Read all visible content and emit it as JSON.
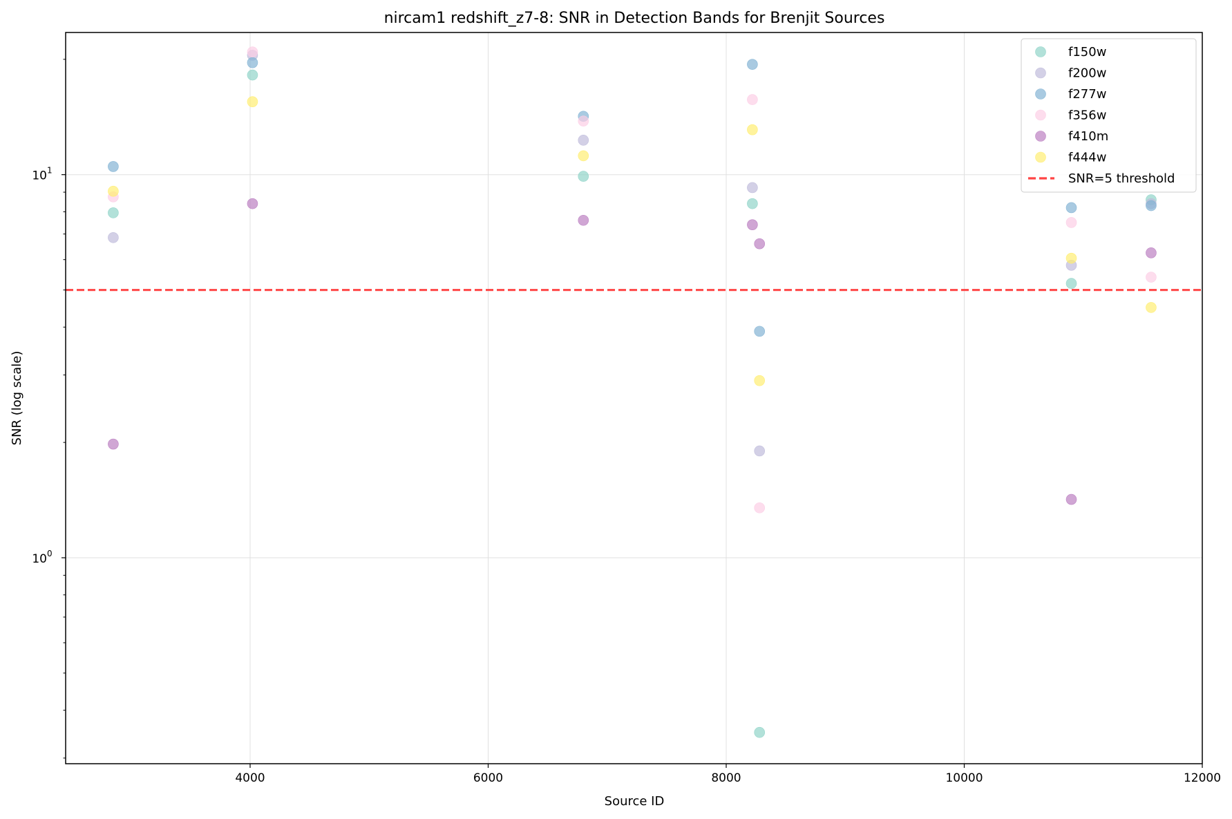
{
  "chart_data": {
    "type": "scatter",
    "title": "nircam1 redshift_z7-8: SNR in Detection Bands for Brenjit Sources",
    "xlabel": "Source ID",
    "ylabel": "SNR (log scale)",
    "xscale": "linear",
    "yscale": "log",
    "xlim": [
      2450,
      12000
    ],
    "ylim": [
      0.29,
      23.5
    ],
    "xticks": [
      {
        "value": 4000,
        "label": "4000"
      },
      {
        "value": 6000,
        "label": "6000"
      },
      {
        "value": 8000,
        "label": "8000"
      },
      {
        "value": 10000,
        "label": "10000"
      },
      {
        "value": 12000,
        "label": "12000"
      }
    ],
    "yticks": [
      {
        "value": 1,
        "base": "10",
        "exp": "0"
      },
      {
        "value": 10,
        "base": "10",
        "exp": "1"
      }
    ],
    "grid": true,
    "legend_position": "top-right",
    "series": [
      {
        "name": "f150w",
        "color": "#8dd3c7",
        "points": [
          [
            2850,
            7.95
          ],
          [
            4020,
            18.2
          ],
          [
            6800,
            9.9
          ],
          [
            8220,
            8.4
          ],
          [
            8280,
            0.35
          ],
          [
            10900,
            5.2
          ],
          [
            11570,
            8.6
          ]
        ]
      },
      {
        "name": "f200w",
        "color": "#bebada",
        "points": [
          [
            2850,
            6.85
          ],
          [
            4020,
            20.5
          ],
          [
            6800,
            12.3
          ],
          [
            8220,
            9.25
          ],
          [
            8280,
            1.9
          ],
          [
            10900,
            5.8
          ],
          [
            11570,
            8.4
          ]
        ]
      },
      {
        "name": "f277w",
        "color": "#80b1d3",
        "points": [
          [
            2850,
            10.5
          ],
          [
            4020,
            19.6
          ],
          [
            6800,
            14.2
          ],
          [
            8220,
            19.4
          ],
          [
            8280,
            3.9
          ],
          [
            10900,
            8.2
          ],
          [
            11570,
            8.3
          ]
        ]
      },
      {
        "name": "f356w",
        "color": "#fccde5",
        "points": [
          [
            2850,
            8.75
          ],
          [
            4020,
            20.9
          ],
          [
            6800,
            13.8
          ],
          [
            8220,
            15.7
          ],
          [
            8280,
            1.35
          ],
          [
            10900,
            7.5
          ],
          [
            11570,
            5.4
          ]
        ]
      },
      {
        "name": "f410m",
        "color": "#b97cc0",
        "points": [
          [
            2850,
            1.98
          ],
          [
            4020,
            8.4
          ],
          [
            6800,
            7.6
          ],
          [
            8220,
            7.4
          ],
          [
            8280,
            6.6
          ],
          [
            10900,
            1.42
          ],
          [
            11570,
            6.25
          ]
        ]
      },
      {
        "name": "f444w",
        "color": "#ffed6f",
        "points": [
          [
            2850,
            9.05
          ],
          [
            4020,
            15.5
          ],
          [
            6800,
            11.2
          ],
          [
            8220,
            13.1
          ],
          [
            8280,
            2.9
          ],
          [
            10900,
            6.05
          ],
          [
            11570,
            4.5
          ]
        ]
      }
    ],
    "threshold": {
      "name": "SNR=5 threshold",
      "value": 5,
      "color": "#ff4444"
    }
  }
}
